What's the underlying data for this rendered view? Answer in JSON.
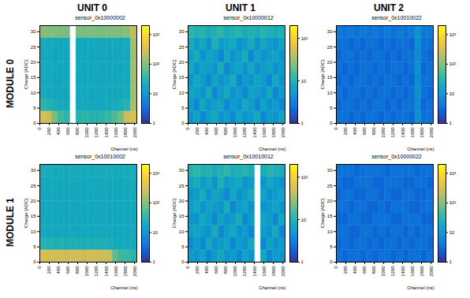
{
  "column_labels": [
    "UNIT 0",
    "UNIT 1",
    "UNIT 2"
  ],
  "row_labels": [
    "MODULE 0",
    "MODULE 1"
  ],
  "chart_data": [
    {
      "type": "heatmap",
      "title": "sensor_0x10000002",
      "x_label": "Channel (ns)",
      "y_label": "Charge [ADC]",
      "xlim": [
        0,
        2048
      ],
      "xticks": [
        0,
        200,
        400,
        600,
        800,
        1000,
        1200,
        1400,
        1600,
        1800,
        2000
      ],
      "ylim": [
        0,
        32
      ],
      "yticks": [
        0,
        5,
        10,
        15,
        20,
        25,
        30
      ],
      "x_bins": [
        0,
        128,
        256,
        384,
        512,
        640,
        768,
        896,
        1024,
        1152,
        1280,
        1408,
        1536,
        1664,
        1792,
        1920,
        2048
      ],
      "y_bins": [
        0,
        4,
        8,
        12,
        16,
        20,
        24,
        28,
        32
      ],
      "cells": [
        [
          320,
          260,
          90,
          45,
          35,
          null,
          30,
          35,
          30,
          30,
          35,
          40,
          55,
          90,
          260,
          320
        ],
        [
          35,
          28,
          24,
          22,
          20,
          null,
          20,
          21,
          20,
          19,
          20,
          21,
          22,
          25,
          32,
          160
        ],
        [
          22,
          20,
          19,
          20,
          18,
          null,
          19,
          20,
          18,
          19,
          20,
          19,
          20,
          20,
          21,
          150
        ],
        [
          20,
          21,
          19,
          18,
          20,
          null,
          18,
          19,
          20,
          18,
          19,
          20,
          19,
          21,
          20,
          150
        ],
        [
          21,
          19,
          20,
          19,
          18,
          null,
          20,
          18,
          19,
          20,
          18,
          19,
          20,
          19,
          21,
          150
        ],
        [
          20,
          20,
          18,
          20,
          19,
          null,
          19,
          20,
          18,
          19,
          20,
          18,
          19,
          20,
          20,
          150
        ],
        [
          22,
          21,
          20,
          19,
          20,
          null,
          20,
          19,
          20,
          20,
          19,
          20,
          21,
          20,
          22,
          160
        ],
        [
          110,
          100,
          95,
          90,
          90,
          null,
          90,
          90,
          95,
          90,
          90,
          95,
          95,
          100,
          110,
          220
        ]
      ],
      "zlim": [
        1,
        2000
      ],
      "zticks": [
        1,
        10,
        {
          "value": 100,
          "label": "10²"
        },
        {
          "value": 1000,
          "label": "10³"
        }
      ]
    },
    {
      "type": "heatmap",
      "title": "sensor_0x10000012",
      "x_label": "Channel (ns)",
      "y_label": "Charge [ADC]",
      "xlim": [
        0,
        2048
      ],
      "xticks": [
        0,
        200,
        400,
        600,
        800,
        1000,
        1200,
        1400,
        1600,
        1800,
        2000
      ],
      "ylim": [
        0,
        32
      ],
      "yticks": [
        0,
        5,
        10,
        15,
        20,
        25,
        30
      ],
      "x_bins": [
        0,
        128,
        256,
        384,
        512,
        640,
        768,
        896,
        1024,
        1152,
        1280,
        1408,
        1536,
        1664,
        1792,
        1920,
        2048
      ],
      "y_bins": [
        0,
        4,
        8,
        12,
        16,
        20,
        24,
        28,
        32
      ],
      "cells": [
        [
          5,
          7,
          4,
          6,
          8,
          5,
          6,
          4,
          7,
          5,
          6,
          8,
          4,
          6,
          5,
          7
        ],
        [
          6,
          4,
          8,
          5,
          6,
          7,
          4,
          6,
          5,
          8,
          6,
          4,
          7,
          5,
          6,
          4
        ],
        [
          7,
          6,
          5,
          9,
          4,
          6,
          8,
          5,
          6,
          4,
          7,
          6,
          5,
          8,
          4,
          6
        ],
        [
          5,
          8,
          6,
          4,
          7,
          5,
          6,
          9,
          4,
          6,
          5,
          7,
          6,
          4,
          8,
          5
        ],
        [
          8,
          5,
          7,
          6,
          5,
          9,
          4,
          6,
          7,
          5,
          8,
          5,
          6,
          7,
          5,
          6
        ],
        [
          6,
          9,
          5,
          7,
          6,
          4,
          8,
          5,
          6,
          9,
          4,
          7,
          5,
          6,
          7,
          5
        ],
        [
          9,
          6,
          8,
          5,
          10,
          6,
          7,
          8,
          5,
          6,
          9,
          5,
          8,
          6,
          5,
          7
        ],
        [
          12,
          10,
          11,
          9,
          10,
          12,
          9,
          10,
          11,
          9,
          10,
          9,
          11,
          10,
          9,
          10
        ]
      ],
      "zlim": [
        1,
        200
      ],
      "zticks": [
        1,
        10,
        {
          "value": 100,
          "label": "10²"
        }
      ]
    },
    {
      "type": "heatmap",
      "title": "sensor_0x10010022",
      "x_label": "Channel (ns)",
      "y_label": "Charge [ADC]",
      "xlim": [
        0,
        2048
      ],
      "xticks": [
        0,
        200,
        400,
        600,
        800,
        1000,
        1200,
        1400,
        1600,
        1800,
        2000
      ],
      "ylim": [
        0,
        32
      ],
      "yticks": [
        0,
        5,
        10,
        15,
        20,
        25,
        30
      ],
      "x_bins": [
        0,
        128,
        256,
        384,
        512,
        640,
        768,
        896,
        1024,
        1152,
        1280,
        1408,
        1536,
        1664,
        1792,
        1920,
        2048
      ],
      "y_bins": [
        0,
        4,
        8,
        12,
        16,
        20,
        24,
        28,
        32
      ],
      "cells": [
        [
          4,
          4,
          3,
          4,
          3,
          4,
          4,
          3,
          4,
          3,
          4,
          4,
          3,
          9,
          4,
          4
        ],
        [
          3,
          4,
          4,
          3,
          4,
          3,
          4,
          4,
          3,
          4,
          3,
          4,
          4,
          8,
          3,
          4
        ],
        [
          4,
          3,
          4,
          4,
          3,
          4,
          3,
          4,
          4,
          3,
          4,
          3,
          4,
          9,
          4,
          3
        ],
        [
          3,
          4,
          3,
          4,
          4,
          3,
          4,
          3,
          4,
          4,
          3,
          4,
          3,
          8,
          4,
          4
        ],
        [
          4,
          3,
          4,
          3,
          4,
          4,
          3,
          4,
          3,
          4,
          4,
          3,
          4,
          9,
          3,
          4
        ],
        [
          3,
          4,
          4,
          3,
          4,
          3,
          4,
          4,
          3,
          4,
          3,
          4,
          4,
          8,
          4,
          3
        ],
        [
          4,
          4,
          3,
          4,
          3,
          4,
          4,
          3,
          4,
          3,
          4,
          4,
          3,
          9,
          4,
          4
        ],
        [
          5,
          4,
          5,
          4,
          5,
          4,
          5,
          4,
          5,
          4,
          5,
          4,
          5,
          10,
          5,
          5
        ]
      ],
      "zlim": [
        1,
        2000
      ],
      "zticks": [
        1,
        10,
        {
          "value": 100,
          "label": "10²"
        },
        {
          "value": 1000,
          "label": "10³"
        }
      ]
    },
    {
      "type": "heatmap",
      "title": "sensor_0x10010002",
      "x_label": "Channel (ns)",
      "y_label": "Charge [ADC]",
      "xlim": [
        0,
        2048
      ],
      "xticks": [
        0,
        200,
        400,
        600,
        800,
        1000,
        1200,
        1400,
        1600,
        1800,
        2000
      ],
      "ylim": [
        0,
        32
      ],
      "yticks": [
        0,
        5,
        10,
        15,
        20,
        25,
        30
      ],
      "x_bins": [
        0,
        128,
        256,
        384,
        512,
        640,
        768,
        896,
        1024,
        1152,
        1280,
        1408,
        1536,
        1664,
        1792,
        1920,
        2048
      ],
      "y_bins": [
        0,
        4,
        8,
        12,
        16,
        20,
        24,
        28,
        32
      ],
      "cells": [
        [
          320,
          300,
          280,
          300,
          260,
          300,
          280,
          260,
          300,
          280,
          260,
          240,
          70,
          45,
          40,
          35
        ],
        [
          30,
          28,
          26,
          27,
          25,
          26,
          25,
          26,
          25,
          26,
          25,
          24,
          22,
          22,
          21,
          22
        ],
        [
          21,
          20,
          19,
          20,
          19,
          20,
          19,
          20,
          19,
          20,
          19,
          20,
          19,
          20,
          19,
          21
        ],
        [
          20,
          19,
          20,
          19,
          20,
          19,
          20,
          19,
          20,
          19,
          20,
          19,
          20,
          19,
          20,
          20
        ],
        [
          19,
          20,
          19,
          20,
          19,
          20,
          19,
          20,
          19,
          20,
          19,
          20,
          19,
          20,
          19,
          20
        ],
        [
          20,
          19,
          20,
          19,
          20,
          19,
          20,
          19,
          20,
          19,
          20,
          19,
          20,
          19,
          20,
          21
        ],
        [
          21,
          20,
          21,
          20,
          21,
          20,
          21,
          20,
          21,
          20,
          21,
          20,
          21,
          20,
          21,
          22
        ],
        [
          24,
          22,
          21,
          22,
          21,
          22,
          21,
          22,
          21,
          22,
          21,
          22,
          21,
          22,
          21,
          24
        ]
      ],
      "zlim": [
        1,
        2000
      ],
      "zticks": [
        1,
        10,
        {
          "value": 100,
          "label": "10²"
        },
        {
          "value": 1000,
          "label": "10³"
        }
      ]
    },
    {
      "type": "heatmap",
      "title": "sensor_0x10010012",
      "x_label": "Channel (ns)",
      "y_label": "Charge [ADC]",
      "xlim": [
        0,
        2048
      ],
      "xticks": [
        0,
        200,
        400,
        600,
        800,
        1000,
        1200,
        1400,
        1600,
        1800,
        2000
      ],
      "ylim": [
        0,
        32
      ],
      "yticks": [
        0,
        5,
        10,
        15,
        20,
        25,
        30
      ],
      "x_bins": [
        0,
        128,
        256,
        384,
        512,
        640,
        768,
        896,
        1024,
        1152,
        1280,
        1408,
        1536,
        1664,
        1792,
        1920,
        2048
      ],
      "y_bins": [
        0,
        4,
        8,
        12,
        16,
        20,
        24,
        28,
        32
      ],
      "cells": [
        [
          6,
          5,
          7,
          4,
          6,
          8,
          5,
          6,
          4,
          7,
          5,
          null,
          8,
          4,
          6,
          5
        ],
        [
          4,
          6,
          4,
          8,
          5,
          6,
          7,
          4,
          6,
          5,
          8,
          null,
          4,
          7,
          5,
          6
        ],
        [
          6,
          7,
          6,
          5,
          9,
          4,
          6,
          8,
          5,
          6,
          4,
          null,
          6,
          5,
          8,
          4
        ],
        [
          5,
          5,
          8,
          6,
          4,
          7,
          5,
          6,
          9,
          4,
          6,
          null,
          7,
          6,
          4,
          8
        ],
        [
          6,
          8,
          5,
          7,
          6,
          5,
          9,
          4,
          6,
          7,
          5,
          null,
          5,
          6,
          7,
          5
        ],
        [
          5,
          6,
          9,
          5,
          7,
          6,
          4,
          8,
          5,
          6,
          9,
          null,
          7,
          5,
          6,
          7
        ],
        [
          7,
          9,
          6,
          8,
          5,
          10,
          6,
          7,
          8,
          5,
          6,
          null,
          5,
          8,
          6,
          5
        ],
        [
          10,
          12,
          10,
          11,
          9,
          10,
          12,
          9,
          10,
          11,
          9,
          null,
          9,
          11,
          10,
          9
        ]
      ],
      "zlim": [
        1,
        200
      ],
      "zticks": [
        1,
        10,
        {
          "value": 100,
          "label": "10²"
        }
      ]
    },
    {
      "type": "heatmap",
      "title": "sensor_0x10000022",
      "x_label": "Channel (ns)",
      "y_label": "Charge [ADC]",
      "xlim": [
        0,
        2048
      ],
      "xticks": [
        0,
        200,
        400,
        600,
        800,
        1000,
        1200,
        1400,
        1600,
        1800,
        2000
      ],
      "ylim": [
        0,
        32
      ],
      "yticks": [
        0,
        5,
        10,
        15,
        20,
        25,
        30
      ],
      "x_bins": [
        0,
        128,
        256,
        384,
        512,
        640,
        768,
        896,
        1024,
        1152,
        1280,
        1408,
        1536,
        1664,
        1792,
        1920,
        2048
      ],
      "y_bins": [
        0,
        4,
        8,
        12,
        16,
        20,
        24,
        28,
        32
      ],
      "cells": [
        [
          4,
          3,
          4,
          4,
          3,
          4,
          3,
          4,
          4,
          3,
          4,
          3,
          4,
          4,
          3,
          4
        ],
        [
          3,
          4,
          3,
          4,
          4,
          3,
          4,
          3,
          4,
          4,
          3,
          4,
          3,
          4,
          4,
          3
        ],
        [
          4,
          4,
          3,
          3,
          4,
          4,
          3,
          4,
          3,
          4,
          4,
          3,
          4,
          3,
          4,
          4
        ],
        [
          3,
          3,
          4,
          4,
          3,
          3,
          4,
          4,
          4,
          3,
          3,
          4,
          4,
          4,
          3,
          3
        ],
        [
          4,
          4,
          3,
          4,
          4,
          3,
          3,
          4,
          3,
          4,
          4,
          4,
          3,
          3,
          4,
          4
        ],
        [
          3,
          4,
          4,
          3,
          3,
          4,
          4,
          3,
          4,
          3,
          3,
          4,
          4,
          3,
          3,
          4
        ],
        [
          4,
          3,
          3,
          4,
          4,
          4,
          3,
          3,
          4,
          4,
          4,
          3,
          3,
          4,
          4,
          3
        ],
        [
          4,
          4,
          4,
          3,
          4,
          4,
          4,
          4,
          3,
          4,
          4,
          4,
          4,
          3,
          4,
          4
        ]
      ],
      "zlim": [
        1,
        2000
      ],
      "zticks": [
        1,
        10,
        {
          "value": 100,
          "label": "10²"
        },
        {
          "value": 1000,
          "label": "10³"
        }
      ]
    }
  ]
}
